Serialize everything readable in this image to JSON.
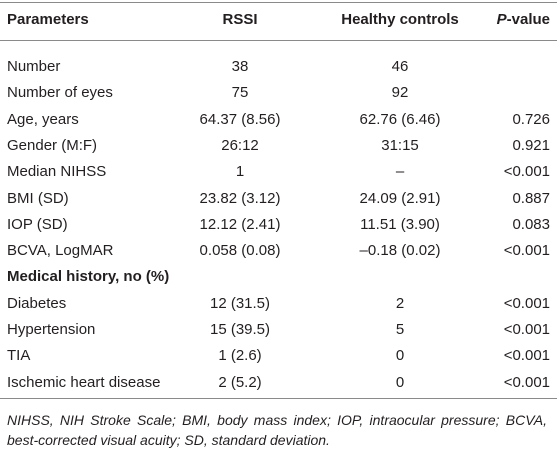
{
  "table": {
    "header": [
      "Parameters",
      "RSSI",
      "Healthy controls",
      [
        "P",
        "-value"
      ]
    ],
    "rows": [
      [
        "Number",
        "38",
        "46",
        null
      ],
      [
        "Number of eyes",
        "75",
        "92",
        null
      ],
      [
        "Age, years",
        "64.37 (8.56)",
        "62.76 (6.46)",
        "0.726"
      ],
      [
        "Gender (M:F)",
        "26:12",
        "31:15",
        "0.921"
      ],
      [
        "Median NIHSS",
        "1",
        "–",
        "<0.001"
      ],
      [
        "BMI (SD)",
        "23.82 (3.12)",
        "24.09 (2.91)",
        "0.887"
      ],
      [
        "IOP (SD)",
        "12.12 (2.41)",
        "11.51 (3.90)",
        "0.083"
      ],
      [
        "BCVA, LogMAR",
        "0.058 (0.08)",
        "–0.18 (0.02)",
        "<0.001"
      ],
      [
        "Medical history, no (%)"
      ],
      [
        "Diabetes",
        "12 (31.5)",
        "2",
        "<0.001"
      ],
      [
        "Hypertension",
        "15 (39.5)",
        "5",
        "<0.001"
      ],
      [
        "TIA",
        "1 (2.6)",
        "0",
        "<0.001"
      ],
      [
        "Ischemic heart disease",
        "2 (5.2)",
        "0",
        "<0.001"
      ]
    ],
    "footnote": "NIHSS, NIH Stroke Scale; BMI, body mass index; IOP, intraocular pressure; BCVA, best-corrected visual acuity; SD, standard deviation."
  }
}
